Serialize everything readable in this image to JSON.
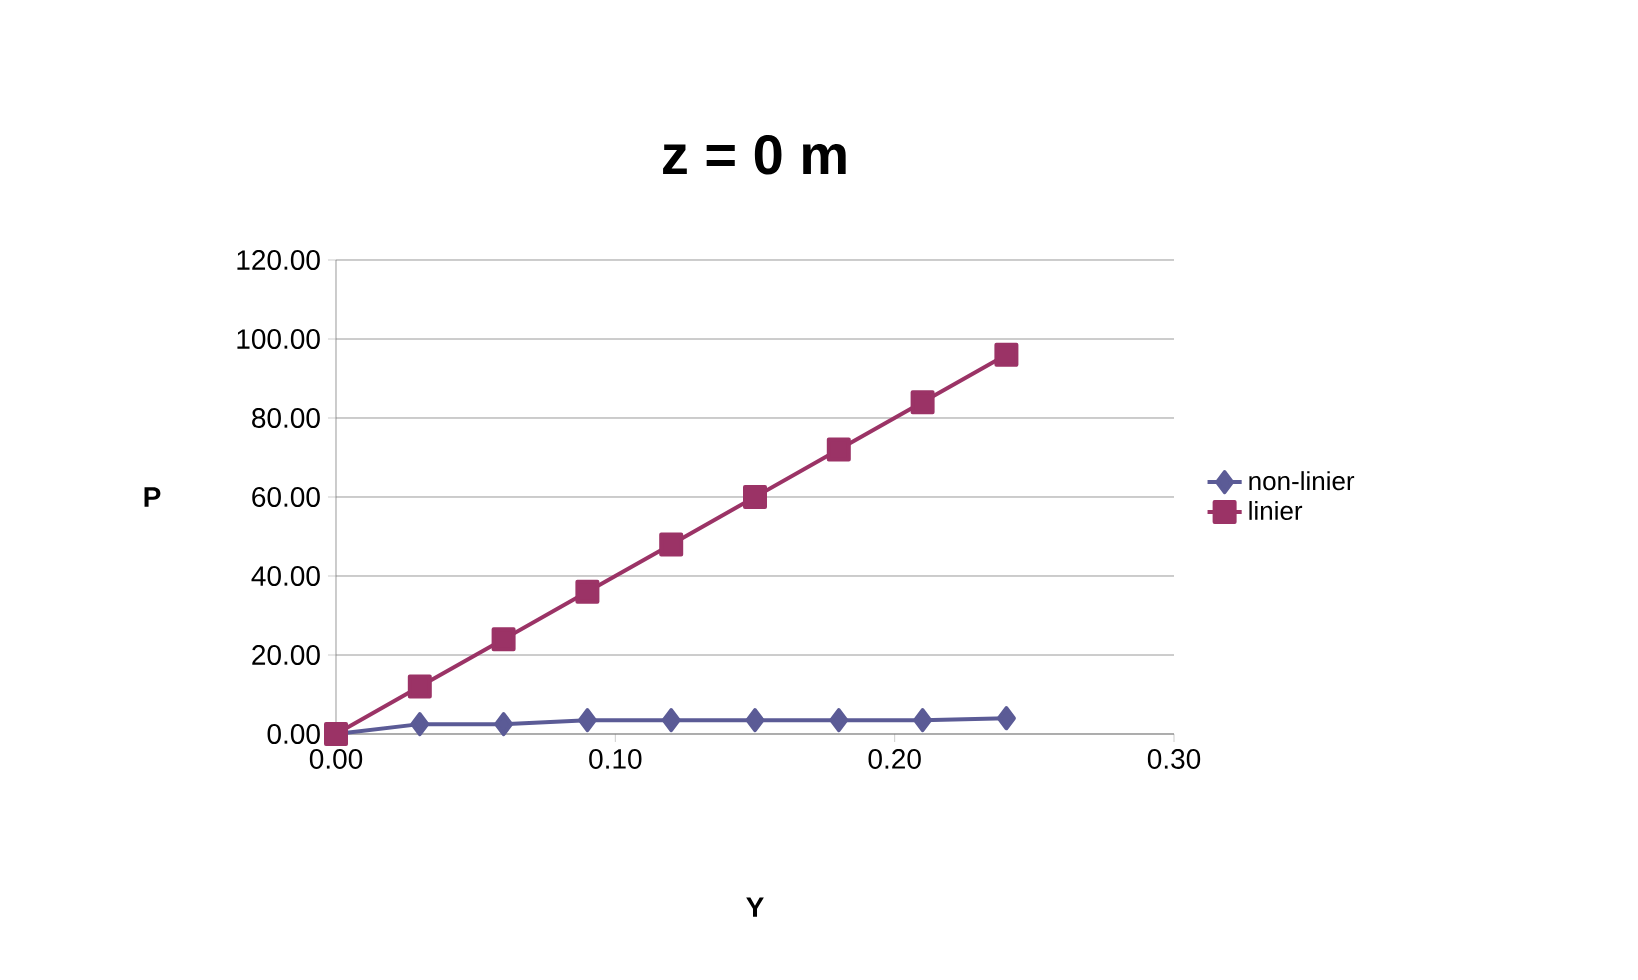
{
  "chart_data": {
    "type": "line",
    "title": "z = 0 m",
    "xlabel": "Y",
    "ylabel": "P",
    "x": [
      0,
      0.03,
      0.06,
      0.09,
      0.12,
      0.15,
      0.18,
      0.21,
      0.24
    ],
    "series": [
      {
        "name": "non-linier",
        "color": "#5b5b96",
        "marker": "diamond",
        "values": [
          0,
          2.5,
          2.5,
          3.5,
          3.5,
          3.5,
          3.5,
          3.5,
          4
        ]
      },
      {
        "name": "linier",
        "color": "#9b3366",
        "marker": "square",
        "values": [
          0,
          12,
          24,
          36,
          48,
          60,
          72,
          84,
          96
        ]
      }
    ],
    "xlim": [
      0,
      0.3
    ],
    "xticks": [
      {
        "value": 0,
        "label": "0.00"
      },
      {
        "value": 0.1,
        "label": "0.10"
      },
      {
        "value": 0.2,
        "label": "0.20"
      },
      {
        "value": 0.3,
        "label": "0.30"
      }
    ],
    "ylim": [
      0,
      120
    ],
    "yticks": [
      {
        "value": 0,
        "label": "0.00"
      },
      {
        "value": 20,
        "label": "20.00"
      },
      {
        "value": 40,
        "label": "40.00"
      },
      {
        "value": 60,
        "label": "60.00"
      },
      {
        "value": 80,
        "label": "80.00"
      },
      {
        "value": 100,
        "label": "100.00"
      },
      {
        "value": 120,
        "label": "120.00"
      }
    ],
    "grid": "y",
    "legend": "right",
    "line_style": "solid"
  }
}
